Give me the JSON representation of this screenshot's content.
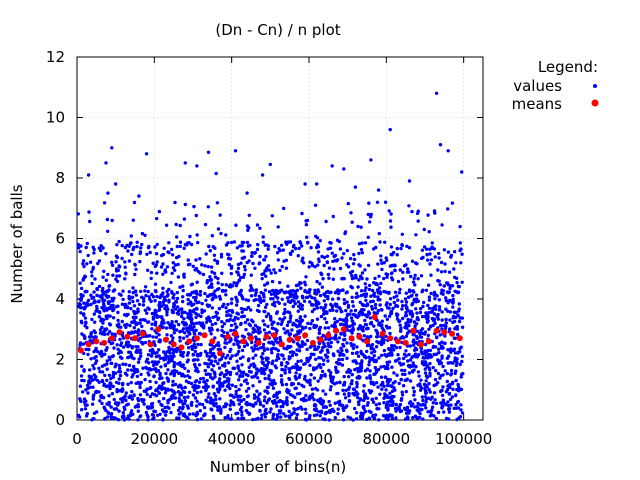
{
  "chart_data": {
    "type": "scatter",
    "title": "(Dn - Cn) / n plot",
    "xlabel": "Number of bins(n)",
    "ylabel": "Number of balls",
    "xlim": [
      0,
      105000
    ],
    "ylim": [
      0,
      12
    ],
    "xticks": [
      0,
      20000,
      40000,
      60000,
      80000,
      100000
    ],
    "yticks": [
      0,
      2,
      4,
      6,
      8,
      10,
      12
    ],
    "grid": true,
    "legend_title": "Legend:",
    "legend_position": "outside-top-right",
    "series": [
      {
        "name": "values",
        "color": "#0000ff",
        "description_points": "about 4000 dense scattered points, mostly between 0 and 6, a few outliers up to about 10.8",
        "outliers": [
          [
            93000,
            10.8
          ],
          [
            81000,
            9.6
          ],
          [
            94000,
            9.1
          ],
          [
            9000,
            9.0
          ],
          [
            96000,
            8.9
          ],
          [
            41000,
            8.9
          ],
          [
            34000,
            8.85
          ],
          [
            18000,
            8.8
          ],
          [
            7500,
            8.5
          ],
          [
            28000,
            8.5
          ],
          [
            31000,
            8.4
          ],
          [
            50000,
            8.45
          ],
          [
            66000,
            8.4
          ],
          [
            69000,
            8.3
          ],
          [
            99500,
            8.2
          ],
          [
            36000,
            8.15
          ],
          [
            3000,
            8.1
          ],
          [
            48000,
            8.1
          ],
          [
            76000,
            8.6
          ],
          [
            86000,
            7.9
          ],
          [
            16000,
            7.4
          ],
          [
            78000,
            7.6
          ],
          [
            62000,
            7.8
          ],
          [
            59000,
            7.8
          ],
          [
            44000,
            7.5
          ],
          [
            10000,
            7.8
          ],
          [
            72000,
            7.7
          ],
          [
            8000,
            7.5
          ]
        ]
      },
      {
        "name": "means",
        "color": "#ff0000",
        "x": [
          1000,
          3000,
          5000,
          7000,
          9000,
          11000,
          13000,
          15000,
          17000,
          19000,
          21000,
          23000,
          25000,
          27000,
          29000,
          31000,
          33000,
          35000,
          37000,
          39000,
          41000,
          43000,
          45000,
          47000,
          49000,
          51000,
          53000,
          55000,
          57000,
          59000,
          61000,
          63000,
          65000,
          67000,
          69000,
          71000,
          73000,
          75000,
          77000,
          79000,
          81000,
          83000,
          85000,
          87000,
          89000,
          91000,
          93000,
          95000,
          97000,
          99000
        ],
        "y": [
          2.3,
          2.5,
          2.6,
          2.55,
          2.7,
          2.9,
          2.75,
          2.7,
          2.85,
          2.5,
          3.0,
          2.65,
          2.5,
          2.4,
          2.6,
          2.7,
          2.8,
          2.6,
          2.2,
          2.75,
          2.85,
          2.6,
          2.7,
          2.55,
          2.75,
          2.8,
          2.5,
          2.65,
          2.7,
          2.8,
          2.55,
          2.65,
          2.8,
          2.95,
          3.0,
          2.7,
          2.75,
          2.6,
          3.4,
          2.85,
          2.7,
          2.6,
          2.55,
          2.95,
          2.5,
          2.6,
          2.95,
          2.9,
          2.85,
          2.7
        ]
      }
    ]
  }
}
